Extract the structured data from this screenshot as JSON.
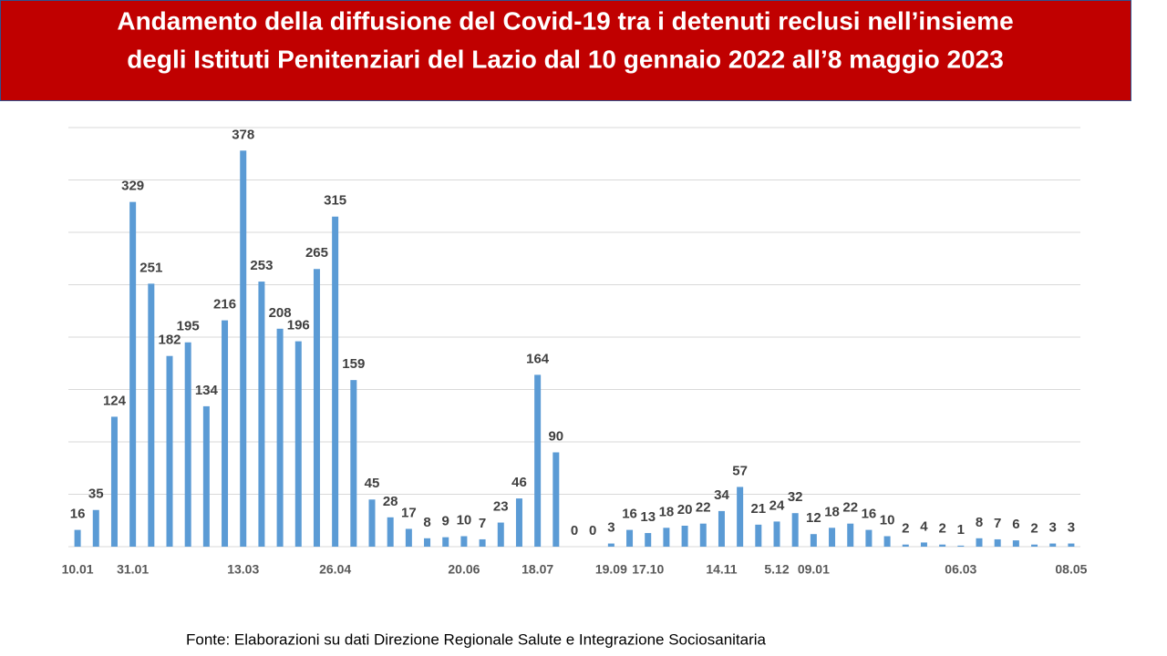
{
  "chart_data": {
    "type": "bar",
    "title": [
      "Andamento della diffusione del Covid-19 tra i detenuti reclusi nell’insieme",
      "degli Istituti Penitenziari del Lazio dal 10 gennaio 2022 all’8 maggio 2023"
    ],
    "categories": [
      "10.01",
      null,
      null,
      "31.01",
      null,
      null,
      null,
      null,
      null,
      "13.03",
      null,
      null,
      null,
      null,
      "26.04",
      null,
      null,
      null,
      null,
      null,
      null,
      "20.06",
      null,
      null,
      null,
      "18.07",
      null,
      null,
      null,
      "19.09",
      null,
      "17.10",
      null,
      null,
      null,
      "14.11",
      null,
      null,
      "5.12",
      null,
      "09.01",
      null,
      null,
      null,
      null,
      null,
      null,
      null,
      "06.03",
      null,
      null,
      null,
      null,
      null,
      "08.05"
    ],
    "values": [
      16,
      35,
      124,
      329,
      251,
      182,
      195,
      134,
      216,
      378,
      253,
      208,
      196,
      265,
      315,
      159,
      45,
      28,
      17,
      8,
      9,
      10,
      7,
      23,
      46,
      164,
      90,
      0,
      0,
      3,
      16,
      13,
      18,
      20,
      22,
      34,
      57,
      21,
      24,
      32,
      12,
      18,
      22,
      16,
      10,
      2,
      4,
      2,
      1,
      8,
      7,
      6,
      2,
      3,
      3
    ],
    "color": "#5b9bd5",
    "ylim": [
      0,
      400
    ],
    "yticks": [
      0,
      50,
      100,
      150,
      200,
      250,
      300,
      350,
      400
    ],
    "grid": true,
    "source": "Fonte: Elaborazioni su dati Direzione Regionale Salute e Integrazione Sociosanitaria"
  }
}
